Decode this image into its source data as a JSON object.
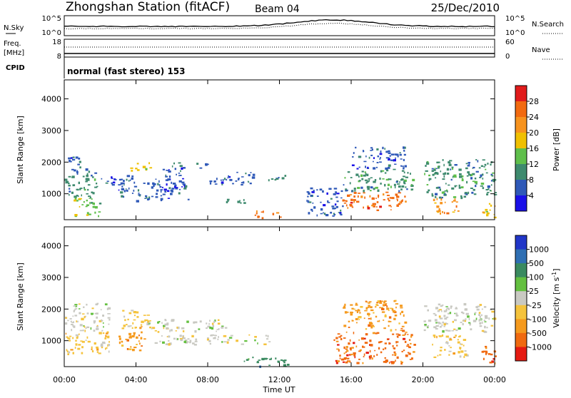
{
  "header": {
    "title": "Zhongshan Station (fitACF)",
    "beam": "Beam 04",
    "date": "25/Dec/2010"
  },
  "strip_labels": {
    "nsky": "N.Sky",
    "nsky_ticks": [
      "10^5",
      "10^0"
    ],
    "nsearch": "N.Search",
    "nsearch_ticks": [
      "10^5",
      "10^0"
    ],
    "freq": "Freq.",
    "freq_unit": "[MHz]",
    "freq_ticks": [
      "18",
      "8"
    ],
    "nave": "Nave",
    "nave_ticks": [
      "60",
      "0"
    ],
    "cpid": "CPID",
    "cpid_value": "normal (fast stereo) 153"
  },
  "axes": {
    "ylabel": "Slant Range [km]",
    "yticks": [
      "1000",
      "2000",
      "3000",
      "4000"
    ],
    "xlabel": "Time UT",
    "xticks": [
      "00:00",
      "04:00",
      "08:00",
      "12:00",
      "16:00",
      "20:00",
      "00:00"
    ]
  },
  "colorbars": {
    "power": {
      "label": "Power [dB]",
      "ticks": [
        "4",
        "8",
        "12",
        "16",
        "20",
        "24",
        "28"
      ],
      "colors": [
        "#1a10e8",
        "#2f59b8",
        "#3e8a6e",
        "#5fbf4b",
        "#f0c000",
        "#f7931e",
        "#f26a10",
        "#e11b1b"
      ]
    },
    "velocity": {
      "label": "Velocity [m s",
      "label_sup": "-1",
      "label_close": "]",
      "ticks": [
        "1000",
        "500",
        "100",
        "25",
        "-25",
        "-100",
        "-500",
        "-1000"
      ],
      "colors": [
        "#2136c8",
        "#2f6fb3",
        "#3a8a60",
        "#64c040",
        "#c9c9c2",
        "#f5c33c",
        "#f59a1e",
        "#f06a10",
        "#e51b12"
      ]
    }
  },
  "chart_data": [
    {
      "type": "heatmap",
      "panel": "power",
      "x_range_hours": [
        0,
        24
      ],
      "ylim_km": [
        180,
        4600
      ],
      "colorbar_label": "Power [dB]",
      "colorbar_ticks": [
        4,
        8,
        12,
        16,
        20,
        24,
        28
      ],
      "regions": [
        {
          "t0": 0.0,
          "t1": 1.8,
          "r0": 900,
          "r1": 1750,
          "level": 2
        },
        {
          "t0": 0.2,
          "t1": 1.2,
          "r0": 1700,
          "r1": 2200,
          "level": 1
        },
        {
          "t0": 0.5,
          "t1": 2.0,
          "r0": 300,
          "r1": 900,
          "level": 3
        },
        {
          "t0": 2.0,
          "t1": 4.0,
          "r0": 1300,
          "r1": 1600,
          "level": 1
        },
        {
          "t0": 3.5,
          "t1": 4.8,
          "r0": 1750,
          "r1": 2000,
          "level": 4
        },
        {
          "t0": 3.0,
          "t1": 7.0,
          "r0": 800,
          "r1": 1500,
          "level": 1
        },
        {
          "t0": 5.0,
          "t1": 6.5,
          "r0": 1550,
          "r1": 1800,
          "level": 1
        },
        {
          "t0": 6.0,
          "t1": 8.0,
          "r0": 1800,
          "r1": 2000,
          "level": 1
        },
        {
          "t0": 8.0,
          "t1": 10.5,
          "r0": 1300,
          "r1": 1700,
          "level": 1
        },
        {
          "t0": 9.0,
          "t1": 10.0,
          "r0": 700,
          "r1": 900,
          "level": 2
        },
        {
          "t0": 11.0,
          "t1": 12.3,
          "r0": 1400,
          "r1": 1600,
          "level": 2
        },
        {
          "t0": 10.5,
          "t1": 12.0,
          "r0": 250,
          "r1": 500,
          "level": 6
        },
        {
          "t0": 13.5,
          "t1": 15.5,
          "r0": 300,
          "r1": 1200,
          "level": 1
        },
        {
          "t0": 15.5,
          "t1": 19.0,
          "r0": 500,
          "r1": 1100,
          "level": 6
        },
        {
          "t0": 15.5,
          "t1": 19.5,
          "r0": 1100,
          "r1": 1800,
          "level": 2
        },
        {
          "t0": 16.0,
          "t1": 19.0,
          "r0": 1800,
          "r1": 2500,
          "level": 1
        },
        {
          "t0": 20.5,
          "t1": 22.0,
          "r0": 400,
          "r1": 900,
          "level": 5
        },
        {
          "t0": 20.0,
          "t1": 24.0,
          "r0": 900,
          "r1": 2100,
          "level": 2
        },
        {
          "t0": 23.3,
          "t1": 24.0,
          "r0": 250,
          "r1": 800,
          "level": 4
        }
      ]
    },
    {
      "type": "heatmap",
      "panel": "velocity",
      "x_range_hours": [
        0,
        24
      ],
      "ylim_km": [
        180,
        4600
      ],
      "colorbar_label": "Velocity [m s-1]",
      "colorbar_ticks": [
        1000,
        500,
        100,
        25,
        -25,
        -100,
        -500,
        -1000
      ],
      "regions": [
        {
          "t0": 0.0,
          "t1": 2.5,
          "r0": 1300,
          "r1": 2200,
          "level": 4
        },
        {
          "t0": 0.0,
          "t1": 2.5,
          "r0": 600,
          "r1": 1300,
          "level": 5
        },
        {
          "t0": 3.2,
          "t1": 4.8,
          "r0": 1400,
          "r1": 2000,
          "level": 5
        },
        {
          "t0": 3.0,
          "t1": 4.5,
          "r0": 700,
          "r1": 1300,
          "level": 6
        },
        {
          "t0": 4.5,
          "t1": 9.0,
          "r0": 1300,
          "r1": 1700,
          "level": 4
        },
        {
          "t0": 5.0,
          "t1": 11.5,
          "r0": 900,
          "r1": 1200,
          "level": 4
        },
        {
          "t0": 10.0,
          "t1": 12.5,
          "r0": 200,
          "r1": 500,
          "level": 2
        },
        {
          "t0": 15.0,
          "t1": 19.5,
          "r0": 300,
          "r1": 1300,
          "level": 7
        },
        {
          "t0": 15.5,
          "t1": 19.0,
          "r0": 1300,
          "r1": 2300,
          "level": 6
        },
        {
          "t0": 20.0,
          "t1": 24.0,
          "r0": 1300,
          "r1": 2200,
          "level": 4
        },
        {
          "t0": 20.5,
          "t1": 22.5,
          "r0": 500,
          "r1": 1200,
          "level": 5
        },
        {
          "t0": 23.2,
          "t1": 24.0,
          "r0": 250,
          "r1": 900,
          "level": 7
        }
      ]
    }
  ]
}
